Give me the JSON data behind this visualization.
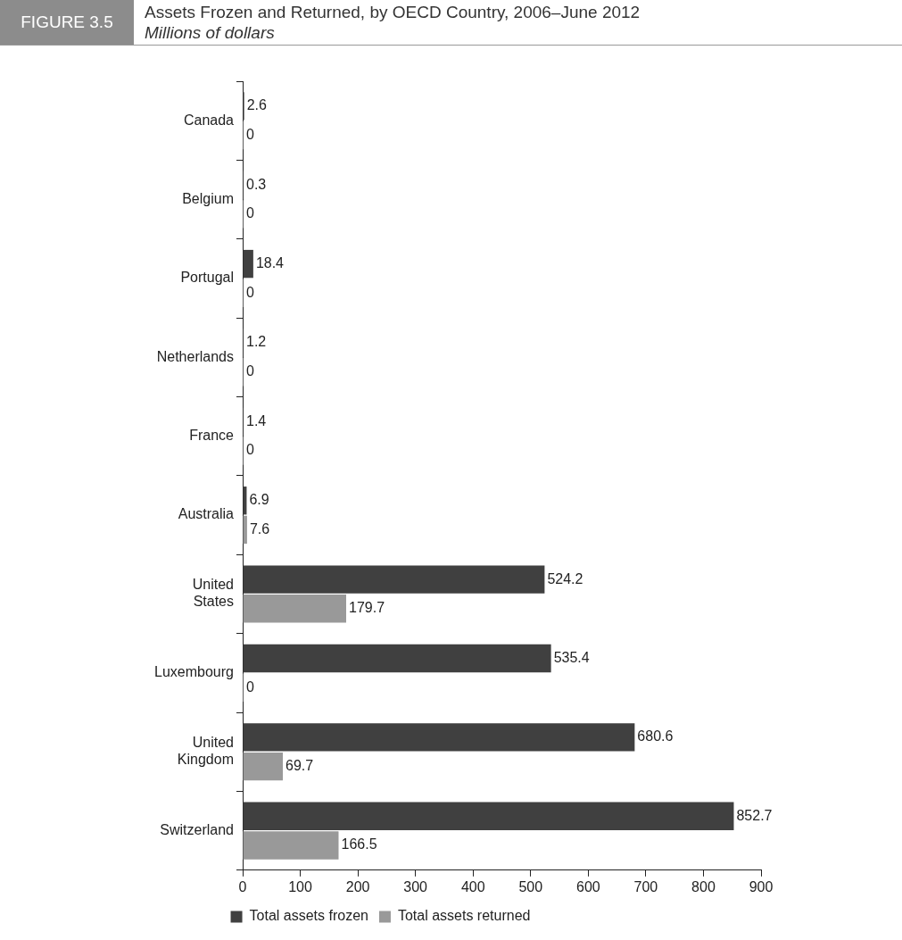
{
  "chart_data": {
    "type": "bar",
    "orientation": "horizontal",
    "title": "Assets Frozen and Returned, by OECD Country, 2006–June 2012",
    "subtitle": "Millions of dollars",
    "annotations": [
      "FIGURE 3.5"
    ],
    "categories": [
      "Canada",
      "Belgium",
      "Portugal",
      "Netherlands",
      "France",
      "Australia",
      "United States",
      "Luxembourg",
      "United Kingdom",
      "Switzerland"
    ],
    "series": [
      {
        "name": "Total assets frozen",
        "color": "#404040",
        "values": [
          2.6,
          0.3,
          18.4,
          1.2,
          1.4,
          6.9,
          524.2,
          535.4,
          680.6,
          852.7
        ]
      },
      {
        "name": "Total assets returned",
        "color": "#999999",
        "values": [
          0,
          0,
          0,
          0,
          0,
          7.6,
          179.7,
          0,
          69.7,
          166.5
        ]
      }
    ],
    "xlim": [
      0,
      900
    ],
    "xticks": [
      0,
      100,
      200,
      300,
      400,
      500,
      600,
      700,
      800,
      900
    ],
    "grid": false,
    "legend": "bottom",
    "data_labels": true
  }
}
